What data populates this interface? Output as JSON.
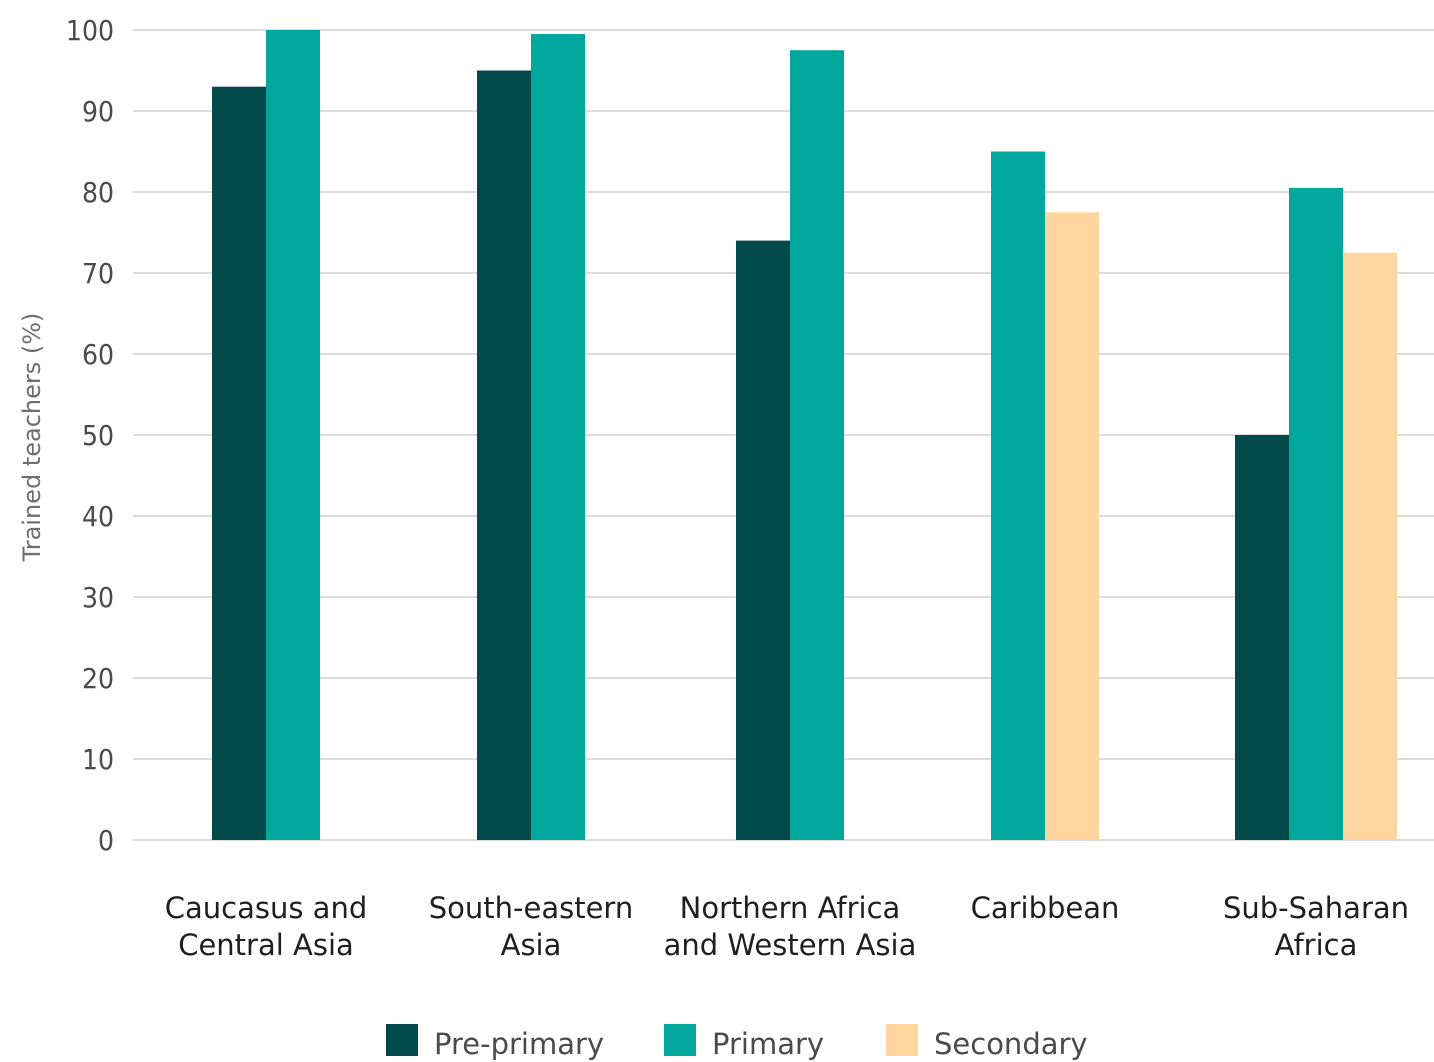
{
  "chart_data": {
    "type": "bar",
    "ylabel": "Trained teachers (%)",
    "ylim": [
      0,
      100
    ],
    "yticks": [
      "0",
      "10",
      "20",
      "30",
      "40",
      "50",
      "60",
      "70",
      "80",
      "90",
      "100"
    ],
    "grid": true,
    "legend_position": "bottom-center",
    "categories": [
      [
        "Caucasus and",
        "Central Asia"
      ],
      [
        "South-eastern",
        "Asia"
      ],
      [
        "Northern Africa",
        "and Western Asia"
      ],
      [
        "Caribbean"
      ],
      [
        "Sub-Saharan",
        "Africa"
      ]
    ],
    "series": [
      {
        "name": "Pre-primary",
        "color": "#024a4a",
        "values": [
          93,
          95,
          74,
          null,
          50
        ]
      },
      {
        "name": "Primary",
        "color": "#00a79d",
        "values": [
          100,
          99.5,
          97.5,
          85,
          80.5
        ]
      },
      {
        "name": "Secondary",
        "color": "#ffd6a0",
        "values": [
          null,
          null,
          null,
          77.5,
          72.5
        ]
      }
    ]
  }
}
